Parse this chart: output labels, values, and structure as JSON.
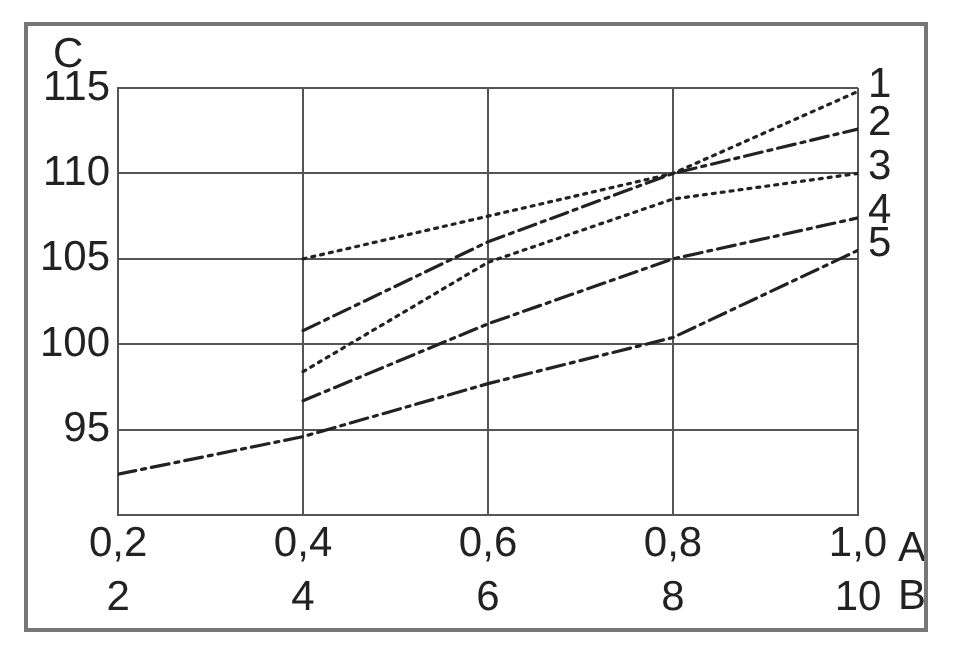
{
  "chart_data": {
    "type": "line",
    "ylabel": "C",
    "xlabel": "A",
    "x2label": "B",
    "x": [
      0.2,
      0.4,
      0.6,
      0.8,
      1.0
    ],
    "xlim": [
      0.2,
      1.0
    ],
    "xticks": [
      {
        "value": 0.2,
        "label": "0,2"
      },
      {
        "value": 0.4,
        "label": "0,4"
      },
      {
        "value": 0.6,
        "label": "0,6"
      },
      {
        "value": 0.8,
        "label": "0,8"
      },
      {
        "value": 1.0,
        "label": "1,0"
      }
    ],
    "x2lim": [
      2,
      10
    ],
    "x2ticks": [
      2,
      4,
      6,
      8,
      10
    ],
    "ylim": [
      90,
      115
    ],
    "yticks": [
      95,
      100,
      105,
      110,
      115
    ],
    "grid": true,
    "legend": false,
    "marker": "none",
    "series": [
      {
        "name": "1",
        "color": "#222222",
        "line_style": "dotted",
        "values": [
          null,
          105,
          107.5,
          110,
          114.8
        ]
      },
      {
        "name": "2",
        "color": "#222222",
        "line_style": "dashed",
        "values": [
          null,
          100.8,
          106,
          110,
          112.6
        ]
      },
      {
        "name": "3",
        "color": "#222222",
        "line_style": "dotted",
        "values": [
          null,
          98.4,
          104.8,
          108.5,
          110
        ]
      },
      {
        "name": "4",
        "color": "#222222",
        "line_style": "dashed",
        "values": [
          null,
          96.7,
          101.2,
          105,
          107.4
        ]
      },
      {
        "name": "5",
        "color": "#222222",
        "line_style": "dashed",
        "values": [
          92.4,
          94.6,
          97.7,
          100.4,
          105.5
        ]
      }
    ]
  }
}
